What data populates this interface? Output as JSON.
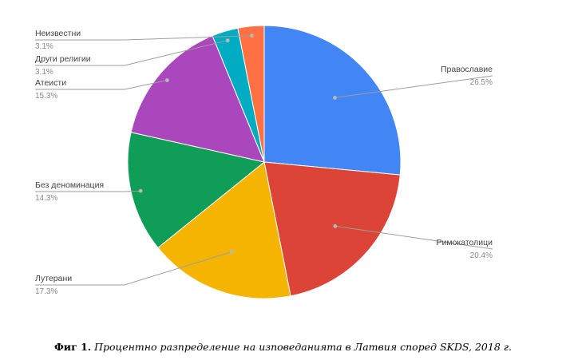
{
  "chart_data": {
    "type": "pie",
    "slices": [
      {
        "label": "Православие",
        "value": 26.5,
        "value_label": "26.5%",
        "color": "#4285f4"
      },
      {
        "label": "Римокатолици",
        "value": 20.4,
        "value_label": "20.4%",
        "color": "#db4437"
      },
      {
        "label": "Лутерани",
        "value": 17.3,
        "value_label": "17.3%",
        "color": "#f4b400"
      },
      {
        "label": "Без деноминация",
        "value": 14.3,
        "value_label": "14.3%",
        "color": "#0f9d58"
      },
      {
        "label": "Атеисти",
        "value": 15.3,
        "value_label": "15.3%",
        "color": "#ab47bc"
      },
      {
        "label": "Други религии",
        "value": 3.1,
        "value_label": "3.1%",
        "color": "#00acc1"
      },
      {
        "label": "Неизвестни",
        "value": 3.1,
        "value_label": "3.1%",
        "color": "#ff7043"
      }
    ],
    "legend": "none"
  },
  "caption": {
    "prefix": "Фиг 1.",
    "text": "Процентно разпределение на изповеданията в Латвия според SKDS, 2018 г."
  }
}
